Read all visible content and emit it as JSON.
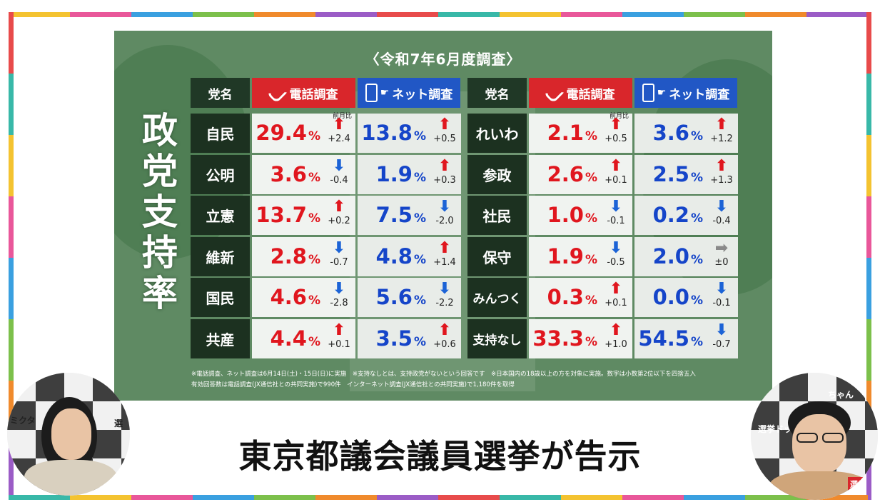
{
  "survey_title": "〈令和7年6月度調査〉",
  "vertical_title": [
    "政",
    "党",
    "支",
    "持",
    "率"
  ],
  "headers": {
    "party": "党名",
    "phone": "電話調査",
    "net": "ネット調査"
  },
  "mom_label": "前月比",
  "left_rows": [
    {
      "party": "自民",
      "phone": "29.4",
      "phone_dir": "up",
      "phone_delta": "+2.4",
      "net": "13.8",
      "net_dir": "up",
      "net_delta": "+0.5"
    },
    {
      "party": "公明",
      "phone": "3.6",
      "phone_dir": "down",
      "phone_delta": "-0.4",
      "net": "1.9",
      "net_dir": "up",
      "net_delta": "+0.3"
    },
    {
      "party": "立憲",
      "phone": "13.7",
      "phone_dir": "up",
      "phone_delta": "+0.2",
      "net": "7.5",
      "net_dir": "down",
      "net_delta": "-2.0"
    },
    {
      "party": "維新",
      "phone": "2.8",
      "phone_dir": "down",
      "phone_delta": "-0.7",
      "net": "4.8",
      "net_dir": "up",
      "net_delta": "+1.4"
    },
    {
      "party": "国民",
      "phone": "4.6",
      "phone_dir": "down",
      "phone_delta": "-2.8",
      "net": "5.6",
      "net_dir": "down",
      "net_delta": "-2.2"
    },
    {
      "party": "共産",
      "phone": "4.4",
      "phone_dir": "up",
      "phone_delta": "+0.1",
      "net": "3.5",
      "net_dir": "up",
      "net_delta": "+0.6"
    }
  ],
  "right_rows": [
    {
      "party": "れいわ",
      "phone": "2.1",
      "phone_dir": "up",
      "phone_delta": "+0.5",
      "net": "3.6",
      "net_dir": "up",
      "net_delta": "+1.2"
    },
    {
      "party": "参政",
      "phone": "2.6",
      "phone_dir": "up",
      "phone_delta": "+0.1",
      "net": "2.5",
      "net_dir": "up",
      "net_delta": "+1.3"
    },
    {
      "party": "社民",
      "phone": "1.0",
      "phone_dir": "down",
      "phone_delta": "-0.1",
      "net": "0.2",
      "net_dir": "down",
      "net_delta": "-0.4"
    },
    {
      "party": "保守",
      "phone": "1.9",
      "phone_dir": "down",
      "phone_delta": "-0.5",
      "net": "2.0",
      "net_dir": "flat",
      "net_delta": "±0"
    },
    {
      "party": "みんつく",
      "phone": "0.3",
      "phone_dir": "up",
      "phone_delta": "+0.1",
      "net": "0.0",
      "net_dir": "down",
      "net_delta": "-0.1"
    },
    {
      "party": "支持なし",
      "phone": "33.3",
      "phone_dir": "up",
      "phone_delta": "+1.0",
      "net": "54.5",
      "net_dir": "down",
      "net_delta": "-0.7"
    }
  ],
  "percent_sign": "%",
  "footnote_1": "※電話調査、ネット調査は6月14日(土)・15日(日)に実施　※支持なしとは、支持政党がないという回答です　※日本国内の18歳以上の方を対象に実施。数字は小数第2位以下を四捨五入",
  "footnote_2": "有効回答数は電話調査(JX通信社との共同実施)で990件　インターネット調査(JX通信社との共同実施)で1,180件を取得",
  "caption": "東京都議会議員選挙が告示",
  "cam_left_tag": "ミクタ",
  "cam_left_tag2": "選",
  "cam_right_tag": "選挙ドットコム",
  "cam_right_tag2": "ちゃん",
  "cam_right_logo": "選挙",
  "frame_colors": [
    "#f4c330",
    "#e9579a",
    "#3aa0e0",
    "#7cc04b",
    "#f08a2c",
    "#9b5cc6",
    "#e84b4b",
    "#38b8a8"
  ]
}
